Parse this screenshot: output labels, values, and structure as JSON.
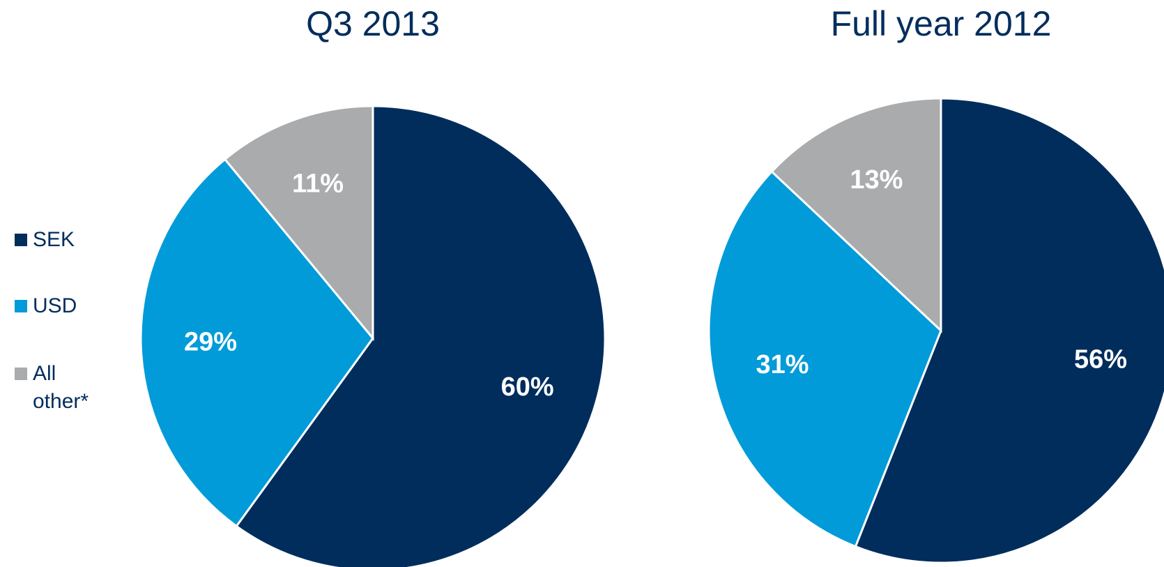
{
  "legend": {
    "names": [
      "SEK",
      "USD",
      "All other*"
    ],
    "colors": [
      "#002d5c",
      "#009bd8",
      "#a9abad"
    ]
  },
  "chart_data": [
    {
      "type": "pie",
      "title": "Q3 2013",
      "values": [
        60,
        29,
        11
      ],
      "value_labels": [
        "60%",
        "29%",
        "11%"
      ]
    },
    {
      "type": "pie",
      "title": "Full year 2012",
      "values": [
        56,
        31,
        13
      ],
      "value_labels": [
        "56%",
        "31%",
        "13%"
      ]
    }
  ]
}
